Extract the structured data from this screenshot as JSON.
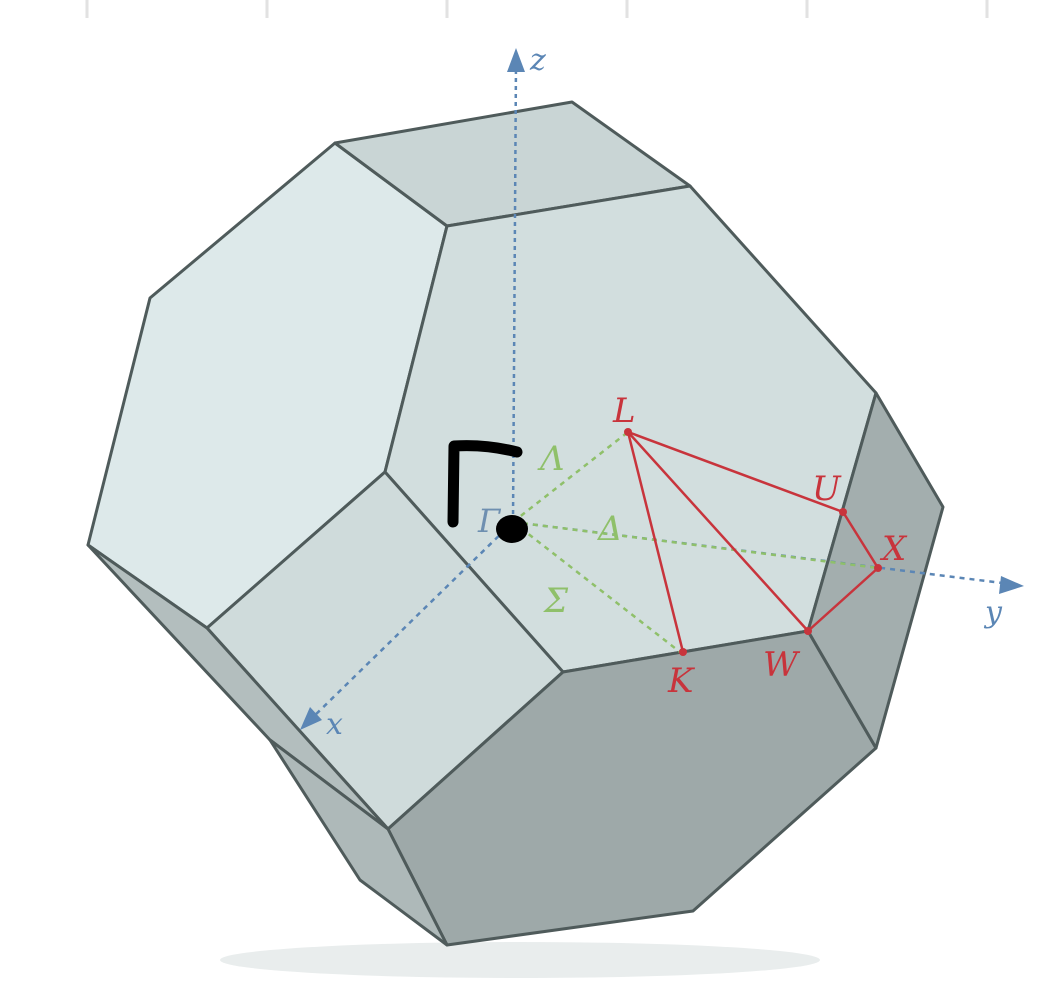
{
  "axes": {
    "z": "z",
    "y": "y",
    "x": "x"
  },
  "points": {
    "L": "L",
    "U": "U",
    "X": "X",
    "W": "W",
    "K": "K",
    "Gamma": "Γ"
  },
  "lines": {
    "Lambda": "Λ",
    "Delta": "Δ",
    "Sigma": "Σ"
  },
  "annotation": {
    "symbol": "Γ"
  },
  "colors": {
    "face_light": "#dde9ea",
    "face_mid": "#c7d3d3",
    "face_dark": "#9ea9a9",
    "edge": "#4f5b5b",
    "path_red": "#c8343c",
    "lines_green": "#8fc06a",
    "axis_blue": "#5b86b5",
    "ink": "#000000"
  }
}
